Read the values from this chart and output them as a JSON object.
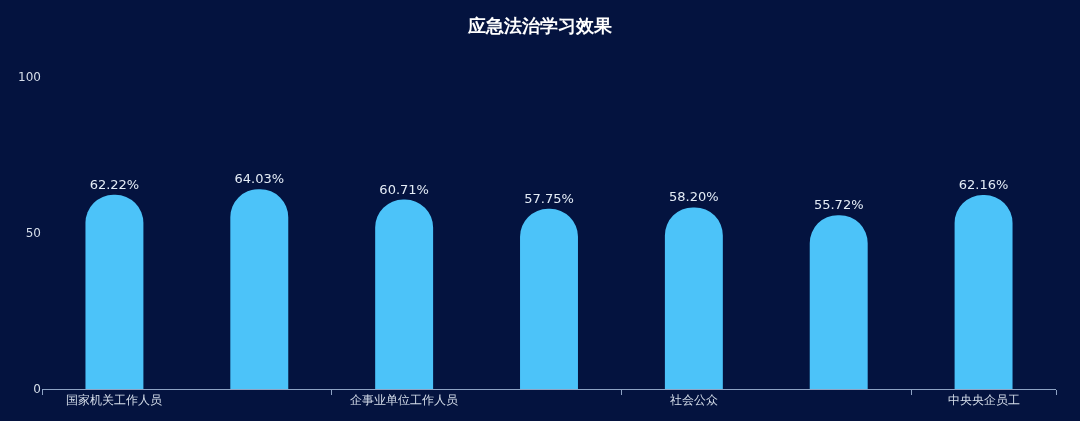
{
  "chart_data": {
    "type": "bar",
    "title": "应急法治学习效果",
    "categories": [
      "国家机关工作人员",
      null,
      "企事业单位工作人员",
      null,
      "社会公众",
      null,
      "中央央企员工"
    ],
    "values": [
      62.22,
      64.03,
      60.71,
      57.75,
      58.2,
      55.72,
      62.16
    ],
    "value_labels": [
      "62.22%",
      "64.03%",
      "60.71%",
      "57.75%",
      "58.20%",
      "55.72%",
      "62.16%"
    ],
    "color": "#4cc3f9",
    "ylim": [
      0,
      100
    ],
    "yticks": [
      0,
      50,
      100
    ]
  }
}
